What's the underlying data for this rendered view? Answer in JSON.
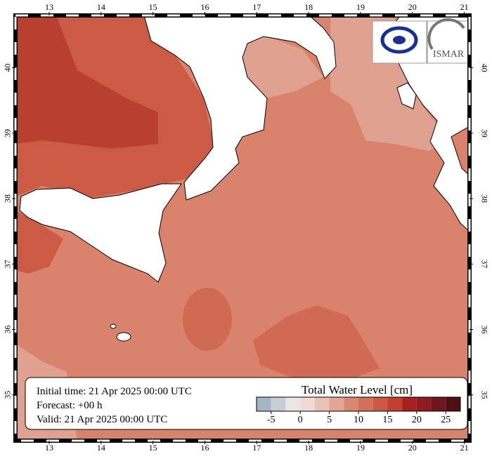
{
  "map": {
    "xlim": [
      12.35,
      21.1
    ],
    "ylim": [
      34.3,
      40.8
    ],
    "xticks": [
      13,
      14,
      15,
      16,
      17,
      18,
      19,
      20,
      21
    ],
    "yticks": [
      35,
      36,
      37,
      38,
      39,
      40
    ],
    "info": [
      "Initial time: 21 Apr 2025 00:00 UTC",
      "Forecast: +00 h",
      "Valid: 21 Apr 2025 00:00 UTC"
    ],
    "logo_text": "ISMAR",
    "colorbar": {
      "title": "Total Water Level [cm]",
      "ticks": [
        -5,
        0,
        5,
        10,
        15,
        20,
        25
      ],
      "bounds": [
        -7.5,
        -5,
        -2.5,
        0,
        2.5,
        5,
        7.5,
        10,
        12.5,
        15,
        17.5,
        20,
        22.5,
        25,
        27.5
      ],
      "colors": [
        "#a3b5c6",
        "#c6ced8",
        "#ebe6e5",
        "#f1dbd4",
        "#e9c1b5",
        "#e2a594",
        "#d9896f",
        "#d4705a",
        "#cb5843",
        "#c0402f",
        "#a71e22",
        "#8e1a22",
        "#6e1520",
        "#4b0f14"
      ]
    }
  }
}
